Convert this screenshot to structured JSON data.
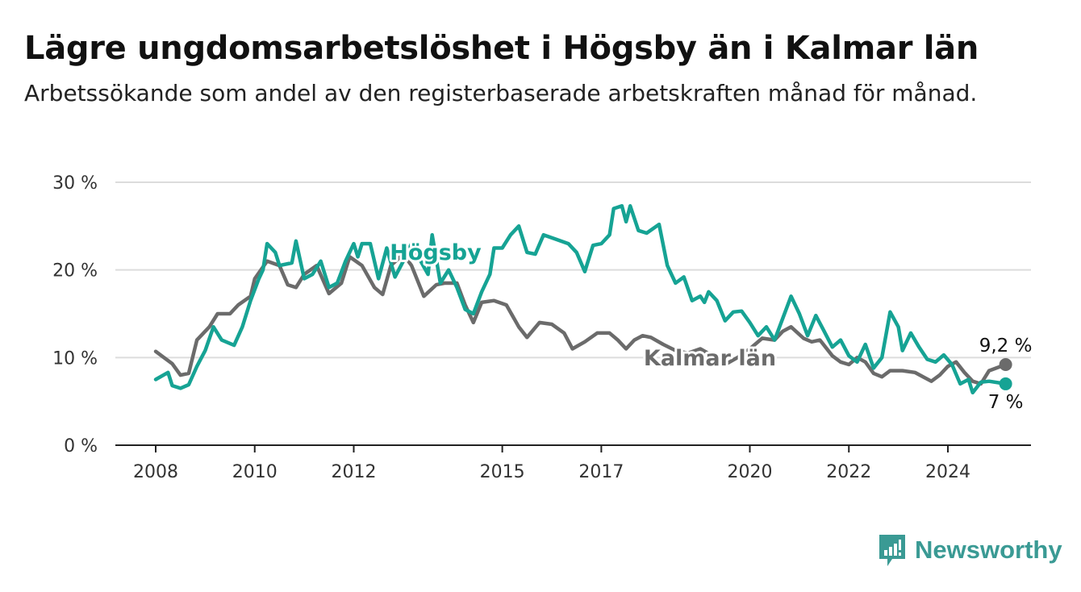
{
  "title": "Lägre ungdomsarbetslöshet i Högsby än i Kalmar län",
  "subtitle": "Arbetssökande som andel av den registerbaserade arbetskraften månad för månad.",
  "brand": {
    "name": "Newsworthy",
    "icon": "newsworthy-logo-icon",
    "color": "#3a9a94"
  },
  "chart_data": {
    "type": "line",
    "title": "Lägre ungdomsarbetslöshet i Högsby än i Kalmar län",
    "subtitle": "Arbetssökande som andel av den registerbaserade arbetskraften månad för månad.",
    "xlabel": "",
    "ylabel": "",
    "ylim": [
      0,
      30
    ],
    "xlim": [
      "2008-01",
      "2025-11"
    ],
    "yticks": [
      0,
      10,
      20,
      30
    ],
    "ytick_labels": [
      "0 %",
      "10 %",
      "20 %",
      "30 %"
    ],
    "xticks": [
      "2008-01",
      "2010-01",
      "2012-01",
      "2015-01",
      "2017-01",
      "2020-01",
      "2022-01",
      "2024-01"
    ],
    "xtick_labels": [
      "2008",
      "2010",
      "2012",
      "2015",
      "2017",
      "2020",
      "2022",
      "2024"
    ],
    "grid": "horizontal",
    "legend": "inline labels",
    "series": [
      {
        "name": "Högsby",
        "color": "#16a394",
        "end_label": "7 %",
        "points": [
          [
            "2008-01",
            7.5
          ],
          [
            "2008-04",
            8.3
          ],
          [
            "2008-05",
            6.8
          ],
          [
            "2008-07",
            6.5
          ],
          [
            "2008-09",
            6.9
          ],
          [
            "2008-11",
            9.0
          ],
          [
            "2009-01",
            10.8
          ],
          [
            "2009-03",
            13.5
          ],
          [
            "2009-05",
            12.0
          ],
          [
            "2009-08",
            11.4
          ],
          [
            "2009-10",
            13.5
          ],
          [
            "2009-12",
            16.5
          ],
          [
            "2010-02",
            19.0
          ],
          [
            "2010-03",
            20.0
          ],
          [
            "2010-04",
            23.0
          ],
          [
            "2010-06",
            22.0
          ],
          [
            "2010-07",
            20.5
          ],
          [
            "2010-10",
            20.8
          ],
          [
            "2010-11",
            23.3
          ],
          [
            "2011-01",
            19.0
          ],
          [
            "2011-03",
            19.5
          ],
          [
            "2011-05",
            21.0
          ],
          [
            "2011-07",
            18.0
          ],
          [
            "2011-09",
            18.5
          ],
          [
            "2011-11",
            21.0
          ],
          [
            "2012-01",
            23.0
          ],
          [
            "2012-02",
            21.5
          ],
          [
            "2012-03",
            23.0
          ],
          [
            "2012-05",
            23.0
          ],
          [
            "2012-07",
            19.0
          ],
          [
            "2012-09",
            22.5
          ],
          [
            "2012-11",
            19.2
          ],
          [
            "2013-01",
            21.0
          ],
          [
            "2013-03",
            23.0
          ],
          [
            "2013-05",
            21.2
          ],
          [
            "2013-07",
            19.5
          ],
          [
            "2013-08",
            24.0
          ],
          [
            "2013-10",
            18.5
          ],
          [
            "2013-12",
            20.0
          ],
          [
            "2014-02",
            18.0
          ],
          [
            "2014-04",
            15.5
          ],
          [
            "2014-06",
            15.0
          ],
          [
            "2014-08",
            17.5
          ],
          [
            "2014-10",
            19.5
          ],
          [
            "2014-11",
            22.5
          ],
          [
            "2015-01",
            22.5
          ],
          [
            "2015-03",
            24.0
          ],
          [
            "2015-05",
            25.0
          ],
          [
            "2015-07",
            22.0
          ],
          [
            "2015-09",
            21.8
          ],
          [
            "2015-11",
            24.0
          ],
          [
            "2016-02",
            23.5
          ],
          [
            "2016-05",
            23.0
          ],
          [
            "2016-07",
            22.0
          ],
          [
            "2016-09",
            19.8
          ],
          [
            "2016-11",
            22.8
          ],
          [
            "2017-01",
            23.0
          ],
          [
            "2017-03",
            24.0
          ],
          [
            "2017-04",
            27.0
          ],
          [
            "2017-06",
            27.3
          ],
          [
            "2017-07",
            25.5
          ],
          [
            "2017-08",
            27.3
          ],
          [
            "2017-10",
            24.5
          ],
          [
            "2017-12",
            24.2
          ],
          [
            "2018-03",
            25.2
          ],
          [
            "2018-05",
            20.5
          ],
          [
            "2018-07",
            18.5
          ],
          [
            "2018-09",
            19.2
          ],
          [
            "2018-11",
            16.5
          ],
          [
            "2019-01",
            17.0
          ],
          [
            "2019-02",
            16.3
          ],
          [
            "2019-03",
            17.5
          ],
          [
            "2019-05",
            16.5
          ],
          [
            "2019-07",
            14.2
          ],
          [
            "2019-09",
            15.2
          ],
          [
            "2019-11",
            15.3
          ],
          [
            "2020-01",
            14.0
          ],
          [
            "2020-03",
            12.5
          ],
          [
            "2020-05",
            13.5
          ],
          [
            "2020-07",
            12.0
          ],
          [
            "2020-09",
            14.5
          ],
          [
            "2020-11",
            17.0
          ],
          [
            "2021-01",
            15.0
          ],
          [
            "2021-03",
            12.5
          ],
          [
            "2021-05",
            14.8
          ],
          [
            "2021-07",
            13.0
          ],
          [
            "2021-09",
            11.2
          ],
          [
            "2021-11",
            12.0
          ],
          [
            "2022-01",
            10.2
          ],
          [
            "2022-03",
            9.5
          ],
          [
            "2022-05",
            11.5
          ],
          [
            "2022-07",
            8.8
          ],
          [
            "2022-09",
            10.0
          ],
          [
            "2022-11",
            15.2
          ],
          [
            "2023-01",
            13.5
          ],
          [
            "2023-02",
            10.8
          ],
          [
            "2023-04",
            12.8
          ],
          [
            "2023-06",
            11.2
          ],
          [
            "2023-08",
            9.8
          ],
          [
            "2023-10",
            9.5
          ],
          [
            "2023-12",
            10.3
          ],
          [
            "2024-02",
            9.2
          ],
          [
            "2024-04",
            7.0
          ],
          [
            "2024-06",
            7.5
          ],
          [
            "2024-07",
            6.0
          ],
          [
            "2024-09",
            7.2
          ],
          [
            "2024-11",
            7.3
          ],
          [
            "2025-03",
            7.0
          ]
        ]
      },
      {
        "name": "Kalmar län",
        "color": "#6b6b6b",
        "end_label": "9,2 %",
        "points": [
          [
            "2008-01",
            10.7
          ],
          [
            "2008-03",
            10.0
          ],
          [
            "2008-05",
            9.3
          ],
          [
            "2008-07",
            8.0
          ],
          [
            "2008-09",
            8.2
          ],
          [
            "2008-11",
            12.0
          ],
          [
            "2009-02",
            13.5
          ],
          [
            "2009-04",
            15.0
          ],
          [
            "2009-07",
            15.0
          ],
          [
            "2009-09",
            16.0
          ],
          [
            "2009-12",
            17.0
          ],
          [
            "2010-01",
            19.0
          ],
          [
            "2010-04",
            21.0
          ],
          [
            "2010-07",
            20.5
          ],
          [
            "2010-09",
            18.3
          ],
          [
            "2010-11",
            18.0
          ],
          [
            "2011-01",
            19.5
          ],
          [
            "2011-04",
            20.5
          ],
          [
            "2011-07",
            17.3
          ],
          [
            "2011-10",
            18.5
          ],
          [
            "2011-12",
            21.5
          ],
          [
            "2012-03",
            20.5
          ],
          [
            "2012-06",
            18.0
          ],
          [
            "2012-08",
            17.2
          ],
          [
            "2012-10",
            20.5
          ],
          [
            "2013-01",
            21.8
          ],
          [
            "2013-03",
            20.5
          ],
          [
            "2013-06",
            17.0
          ],
          [
            "2013-09",
            18.3
          ],
          [
            "2013-11",
            18.5
          ],
          [
            "2014-02",
            18.5
          ],
          [
            "2014-04",
            16.0
          ],
          [
            "2014-06",
            14.0
          ],
          [
            "2014-08",
            16.3
          ],
          [
            "2014-11",
            16.5
          ],
          [
            "2015-02",
            16.0
          ],
          [
            "2015-05",
            13.5
          ],
          [
            "2015-07",
            12.3
          ],
          [
            "2015-10",
            14.0
          ],
          [
            "2016-01",
            13.8
          ],
          [
            "2016-04",
            12.8
          ],
          [
            "2016-06",
            11.0
          ],
          [
            "2016-09",
            11.8
          ],
          [
            "2016-12",
            12.8
          ],
          [
            "2017-03",
            12.8
          ],
          [
            "2017-05",
            12.0
          ],
          [
            "2017-07",
            11.0
          ],
          [
            "2017-09",
            12.0
          ],
          [
            "2017-11",
            12.5
          ],
          [
            "2018-01",
            12.3
          ],
          [
            "2018-04",
            11.5
          ],
          [
            "2018-07",
            10.8
          ],
          [
            "2018-10",
            10.5
          ],
          [
            "2019-01",
            11.0
          ],
          [
            "2019-04",
            10.2
          ],
          [
            "2019-07",
            9.2
          ],
          [
            "2019-10",
            10.0
          ],
          [
            "2020-01",
            11.0
          ],
          [
            "2020-04",
            12.2
          ],
          [
            "2020-07",
            12.0
          ],
          [
            "2020-09",
            13.0
          ],
          [
            "2020-11",
            13.5
          ],
          [
            "2021-02",
            12.2
          ],
          [
            "2021-04",
            11.8
          ],
          [
            "2021-06",
            12.0
          ],
          [
            "2021-09",
            10.2
          ],
          [
            "2021-11",
            9.5
          ],
          [
            "2022-01",
            9.2
          ],
          [
            "2022-03",
            10.0
          ],
          [
            "2022-05",
            9.5
          ],
          [
            "2022-07",
            8.2
          ],
          [
            "2022-09",
            7.8
          ],
          [
            "2022-11",
            8.5
          ],
          [
            "2023-02",
            8.5
          ],
          [
            "2023-05",
            8.3
          ],
          [
            "2023-07",
            7.8
          ],
          [
            "2023-09",
            7.3
          ],
          [
            "2023-11",
            8.0
          ],
          [
            "2024-01",
            9.0
          ],
          [
            "2024-03",
            9.5
          ],
          [
            "2024-05",
            8.3
          ],
          [
            "2024-07",
            7.3
          ],
          [
            "2024-09",
            7.0
          ],
          [
            "2024-11",
            8.5
          ],
          [
            "2025-03",
            9.2
          ]
        ]
      }
    ]
  }
}
